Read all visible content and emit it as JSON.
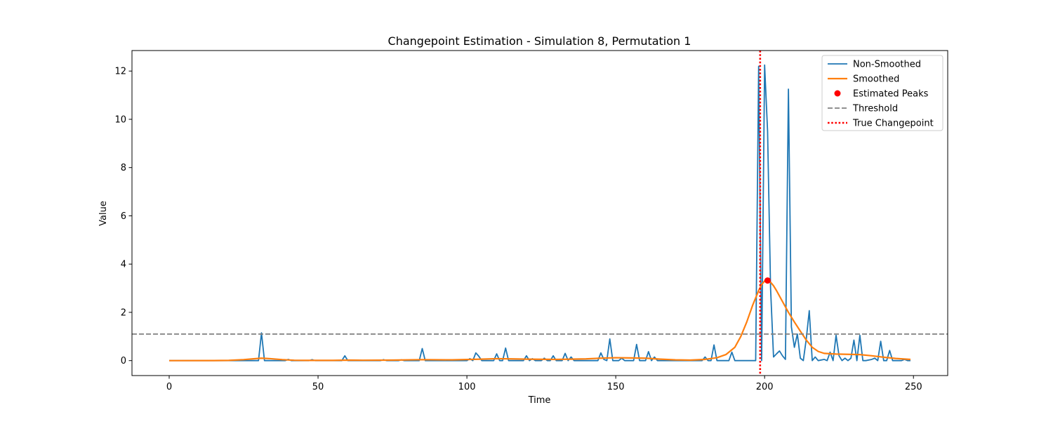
{
  "chart_data": {
    "type": "line",
    "title": "Changepoint Estimation - Simulation 8, Permutation 1",
    "xlabel": "Time",
    "ylabel": "Value",
    "xlim": [
      -12.5,
      261.5
    ],
    "ylim": [
      -0.62,
      12.85
    ],
    "xticks": [
      0,
      50,
      100,
      150,
      200,
      250
    ],
    "yticks": [
      0,
      2,
      4,
      6,
      8,
      10,
      12
    ],
    "grid": false,
    "legend_position": "top-right",
    "series": [
      {
        "name": "Non-Smoothed",
        "type": "line",
        "color": "#1f77b4",
        "points": [
          [
            0,
            0
          ],
          [
            30,
            0
          ],
          [
            31,
            1.15
          ],
          [
            32,
            0
          ],
          [
            39,
            0
          ],
          [
            40,
            0.05
          ],
          [
            41,
            0
          ],
          [
            47,
            0
          ],
          [
            48,
            0.04
          ],
          [
            49,
            0
          ],
          [
            58,
            0
          ],
          [
            59,
            0.2
          ],
          [
            60,
            0
          ],
          [
            71,
            0
          ],
          [
            72,
            0.04
          ],
          [
            73,
            0
          ],
          [
            77,
            0
          ],
          [
            78,
            0.03
          ],
          [
            79,
            0
          ],
          [
            84,
            0
          ],
          [
            85,
            0.5
          ],
          [
            86,
            0
          ],
          [
            100,
            0
          ],
          [
            101,
            0.08
          ],
          [
            102,
            0
          ],
          [
            103,
            0.32
          ],
          [
            104,
            0.18
          ],
          [
            105,
            0
          ],
          [
            109,
            0
          ],
          [
            110,
            0.28
          ],
          [
            111,
            0
          ],
          [
            112,
            0
          ],
          [
            113,
            0.52
          ],
          [
            114,
            0
          ],
          [
            118,
            0
          ],
          [
            119,
            0
          ],
          [
            120,
            0.2
          ],
          [
            121,
            0
          ],
          [
            122,
            0.08
          ],
          [
            123,
            0
          ],
          [
            125,
            0
          ],
          [
            126,
            0.1
          ],
          [
            127,
            0
          ],
          [
            128,
            0
          ],
          [
            129,
            0.2
          ],
          [
            130,
            0
          ],
          [
            132,
            0
          ],
          [
            133,
            0.3
          ],
          [
            134,
            0
          ],
          [
            135,
            0.15
          ],
          [
            136,
            0
          ],
          [
            144,
            0
          ],
          [
            145,
            0.32
          ],
          [
            146,
            0.05
          ],
          [
            147,
            0
          ],
          [
            148,
            0.9
          ],
          [
            149,
            0
          ],
          [
            151,
            0
          ],
          [
            152,
            0.1
          ],
          [
            153,
            0
          ],
          [
            156,
            0
          ],
          [
            157,
            0.67
          ],
          [
            158,
            0
          ],
          [
            160,
            0
          ],
          [
            161,
            0.37
          ],
          [
            162,
            0
          ],
          [
            163,
            0.15
          ],
          [
            164,
            0
          ],
          [
            179,
            0
          ],
          [
            180,
            0.15
          ],
          [
            181,
            0
          ],
          [
            182,
            0
          ],
          [
            183,
            0.65
          ],
          [
            184,
            0
          ],
          [
            188,
            0
          ],
          [
            189,
            0.35
          ],
          [
            190,
            0
          ],
          [
            197,
            0
          ],
          [
            198,
            12.2
          ],
          [
            199,
            0
          ],
          [
            200,
            12.25
          ],
          [
            201,
            9.5
          ],
          [
            202,
            3
          ],
          [
            203,
            0.15
          ],
          [
            204,
            0.28
          ],
          [
            205,
            0.4
          ],
          [
            206,
            0.2
          ],
          [
            207,
            0.05
          ],
          [
            208,
            11.25
          ],
          [
            209,
            1.4
          ],
          [
            210,
            0.55
          ],
          [
            211,
            1.1
          ],
          [
            212,
            0.1
          ],
          [
            213,
            0
          ],
          [
            214,
            0.9
          ],
          [
            215,
            2.07
          ],
          [
            216,
            0
          ],
          [
            217,
            0.15
          ],
          [
            218,
            0
          ],
          [
            220,
            0.05
          ],
          [
            221,
            0
          ],
          [
            222,
            0.35
          ],
          [
            223,
            0
          ],
          [
            224,
            1.05
          ],
          [
            225,
            0.2
          ],
          [
            226,
            0
          ],
          [
            227,
            0.1
          ],
          [
            228,
            0
          ],
          [
            229,
            0.1
          ],
          [
            230,
            0.85
          ],
          [
            231,
            0
          ],
          [
            232,
            1.05
          ],
          [
            233,
            0
          ],
          [
            234,
            0
          ],
          [
            236,
            0.05
          ],
          [
            237,
            0.1
          ],
          [
            238,
            0
          ],
          [
            239,
            0.8
          ],
          [
            240,
            0
          ],
          [
            241,
            0
          ],
          [
            242,
            0.42
          ],
          [
            243,
            0
          ],
          [
            246,
            0
          ],
          [
            247,
            0.05
          ],
          [
            248,
            0
          ],
          [
            249,
            0
          ]
        ]
      },
      {
        "name": "Smoothed",
        "type": "line",
        "color": "#ff7f0e",
        "points": [
          [
            0,
            0
          ],
          [
            15,
            0.002
          ],
          [
            20,
            0.01
          ],
          [
            25,
            0.04
          ],
          [
            28,
            0.07
          ],
          [
            31,
            0.1
          ],
          [
            34,
            0.08
          ],
          [
            38,
            0.04
          ],
          [
            42,
            0.015
          ],
          [
            46,
            0.01
          ],
          [
            55,
            0.01
          ],
          [
            60,
            0.02
          ],
          [
            65,
            0.015
          ],
          [
            75,
            0.02
          ],
          [
            85,
            0.04
          ],
          [
            95,
            0.03
          ],
          [
            105,
            0.06
          ],
          [
            110,
            0.08
          ],
          [
            115,
            0.07
          ],
          [
            120,
            0.06
          ],
          [
            130,
            0.05
          ],
          [
            140,
            0.07
          ],
          [
            145,
            0.1
          ],
          [
            150,
            0.12
          ],
          [
            155,
            0.11
          ],
          [
            160,
            0.1
          ],
          [
            165,
            0.06
          ],
          [
            170,
            0.03
          ],
          [
            175,
            0.02
          ],
          [
            180,
            0.05
          ],
          [
            184,
            0.12
          ],
          [
            187,
            0.25
          ],
          [
            190,
            0.55
          ],
          [
            192,
            1.0
          ],
          [
            194,
            1.6
          ],
          [
            196,
            2.3
          ],
          [
            198,
            2.9
          ],
          [
            199,
            3.15
          ],
          [
            200,
            3.3
          ],
          [
            201,
            3.32
          ],
          [
            202,
            3.25
          ],
          [
            203,
            3.1
          ],
          [
            204,
            2.9
          ],
          [
            206,
            2.45
          ],
          [
            208,
            2.0
          ],
          [
            210,
            1.6
          ],
          [
            212,
            1.22
          ],
          [
            214,
            0.85
          ],
          [
            216,
            0.55
          ],
          [
            218,
            0.38
          ],
          [
            220,
            0.3
          ],
          [
            224,
            0.27
          ],
          [
            228,
            0.26
          ],
          [
            232,
            0.25
          ],
          [
            236,
            0.2
          ],
          [
            240,
            0.14
          ],
          [
            244,
            0.09
          ],
          [
            249,
            0.05
          ]
        ]
      },
      {
        "name": "Estimated Peaks",
        "type": "scatter",
        "color": "#ff0000",
        "points": [
          [
            201,
            3.32
          ]
        ]
      },
      {
        "name": "Threshold",
        "type": "hline",
        "color": "#808080",
        "y": 1.1
      },
      {
        "name": "True Changepoint",
        "type": "vline",
        "color": "#ff0000",
        "x": 198.5
      }
    ]
  }
}
